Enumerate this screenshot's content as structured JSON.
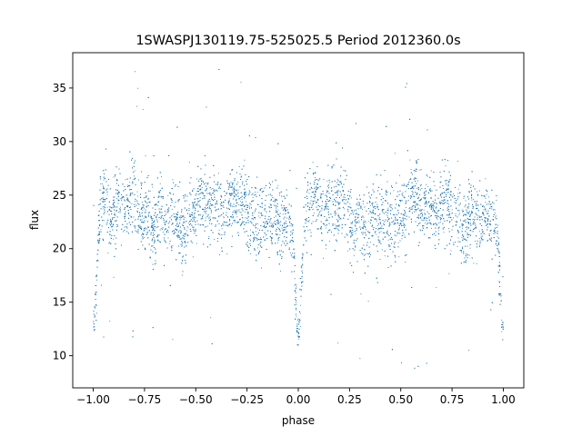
{
  "chart_data": {
    "type": "scatter",
    "title": "1SWASPJ130119.75-525025.5 Period 2012360.0s",
    "xlabel": "phase",
    "ylabel": "flux",
    "xlim": [
      -1.1,
      1.1
    ],
    "ylim": [
      7,
      38.3
    ],
    "grid": false,
    "marker_color": "#1f77b4",
    "xticks": [
      -1.0,
      -0.75,
      -0.5,
      -0.25,
      0.0,
      0.25,
      0.5,
      0.75,
      1.0
    ],
    "xtick_labels": [
      "−1.00",
      "−0.75",
      "−0.50",
      "−0.25",
      "0.00",
      "0.25",
      "0.50",
      "0.75",
      "1.00"
    ],
    "yticks": [
      10,
      15,
      20,
      25,
      30,
      35
    ],
    "ytick_labels": [
      "10",
      "15",
      "20",
      "25",
      "30",
      "35"
    ],
    "series": [
      {
        "phase_range": [
          -1.0,
          1.0
        ],
        "baseline_flux": 23.3,
        "eclipse_phases": [
          -1.0,
          0.0,
          1.0
        ],
        "eclipse_min_flux": 12.5,
        "outlier_range": [
          8.5,
          37
        ]
      }
    ]
  }
}
